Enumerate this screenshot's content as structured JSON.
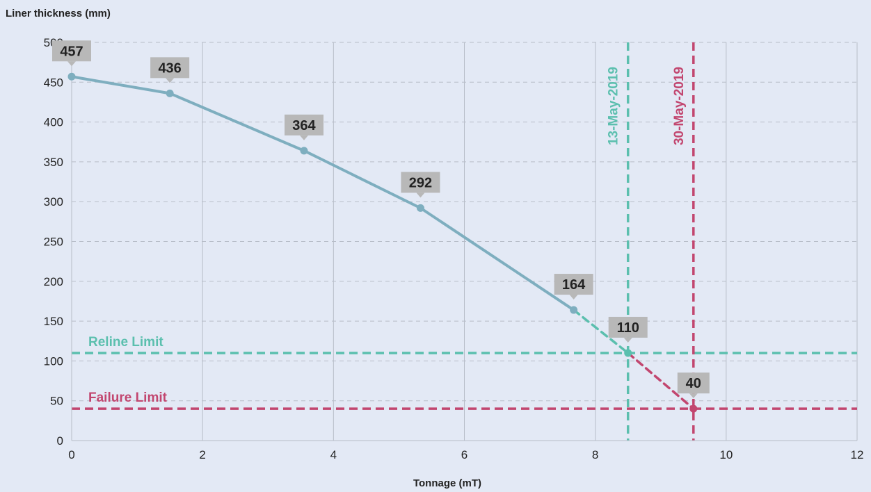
{
  "chart_data": {
    "type": "line",
    "xlabel": "Tonnage (mT)",
    "ylabel": "Liner thickness (mm)",
    "xlim": [
      0,
      12
    ],
    "ylim": [
      0,
      500
    ],
    "x_ticks": [
      0,
      2,
      4,
      6,
      8,
      10,
      12
    ],
    "y_ticks": [
      0,
      50,
      100,
      150,
      200,
      250,
      300,
      350,
      400,
      450,
      500
    ],
    "grid": {
      "x": "solid",
      "y": "dashed"
    },
    "series": [
      {
        "style": "solid",
        "color": "#7eaebf",
        "points": [
          {
            "x": 0,
            "y": 457,
            "label": "457"
          },
          {
            "x": 1.5,
            "y": 436,
            "label": "436"
          },
          {
            "x": 3.55,
            "y": 364,
            "label": "364"
          },
          {
            "x": 5.33,
            "y": 292,
            "label": "292"
          },
          {
            "x": 7.67,
            "y": 164,
            "label": "164"
          }
        ]
      },
      {
        "style": "dashed",
        "color": "#5bbfae",
        "points": [
          {
            "x": 7.67,
            "y": 164
          },
          {
            "x": 8.5,
            "y": 110,
            "label": "110"
          }
        ]
      },
      {
        "style": "dashed",
        "color": "#c2466f",
        "points": [
          {
            "x": 8.5,
            "y": 110
          },
          {
            "x": 9.5,
            "y": 40,
            "label": "40"
          }
        ]
      }
    ],
    "horizontal_lines": [
      {
        "y": 110,
        "label": "Reline Limit",
        "color": "#5bbfae"
      },
      {
        "y": 40,
        "label": "Failure Limit",
        "color": "#c2466f"
      }
    ],
    "vertical_lines": [
      {
        "x": 8.5,
        "label": "13-May-2019",
        "color": "#5bbfae"
      },
      {
        "x": 9.5,
        "label": "30-May-2019",
        "color": "#c2466f"
      }
    ],
    "colors": {
      "background": "#e3e9f5",
      "grid": "#b7bdc8",
      "label_box": "#b8b8b8",
      "axis_text": "#222222"
    }
  }
}
